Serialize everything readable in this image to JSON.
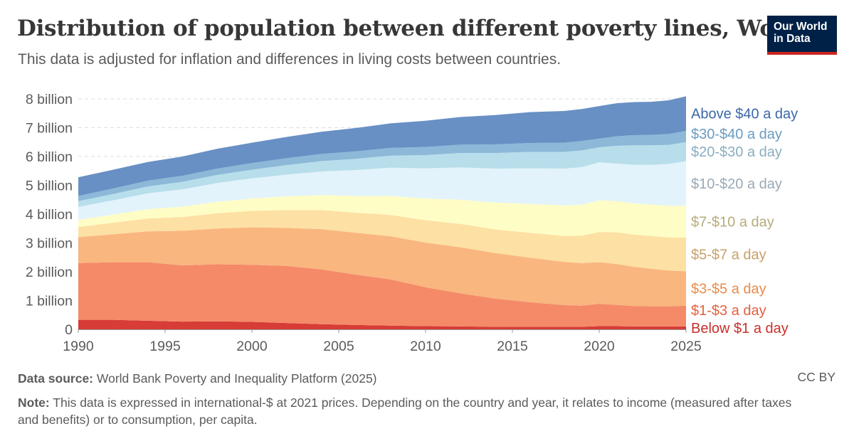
{
  "header": {
    "title": "Distribution of population between different poverty lines, World",
    "subtitle": "This data is adjusted for inflation and differences in living costs between countries.",
    "logo_line1": "Our World",
    "logo_line2": "in Data"
  },
  "footer": {
    "source_label": "Data source:",
    "source_text": "World Bank Poverty and Inequality Platform (2025)",
    "license": "CC BY",
    "note_label": "Note:",
    "note_text": "This data is expressed in international-$ at 2021 prices. Depending on the country and year, it relates to income (measured after taxes and benefits) or to consumption, per capita."
  },
  "chart_data": {
    "type": "area",
    "stacked": true,
    "title": "Distribution of population between different poverty lines, World",
    "xlim": [
      1990,
      2025
    ],
    "ylim": [
      0,
      8000000000
    ],
    "x_ticks": [
      1990,
      1995,
      2000,
      2005,
      2010,
      2015,
      2020,
      2025
    ],
    "x_tick_labels": [
      "1990",
      "1995",
      "2000",
      "2005",
      "2010",
      "2015",
      "2020",
      "2025"
    ],
    "y_ticks": [
      0,
      1000000000,
      2000000000,
      3000000000,
      4000000000,
      5000000000,
      6000000000,
      7000000000,
      8000000000
    ],
    "y_tick_labels": [
      "0",
      "1 billion",
      "2 billion",
      "3 billion",
      "4 billion",
      "5 billion",
      "6 billion",
      "7 billion",
      "8 billion"
    ],
    "grid": "horizontal dashed",
    "legend": "right, inline labels",
    "x": [
      1990,
      1992,
      1994,
      1996,
      1998,
      2000,
      2002,
      2004,
      2006,
      2008,
      2010,
      2012,
      2014,
      2016,
      2018,
      2019,
      2020,
      2021,
      2022,
      2023,
      2024,
      2025
    ],
    "series": [
      {
        "name": "Below $1 a day",
        "color": "#d73c36",
        "values": [
          0.33,
          0.33,
          0.3,
          0.27,
          0.28,
          0.26,
          0.22,
          0.18,
          0.15,
          0.13,
          0.11,
          0.1,
          0.09,
          0.09,
          0.09,
          0.09,
          0.11,
          0.11,
          0.1,
          0.1,
          0.1,
          0.1
        ]
      },
      {
        "name": "$1-$3 a day",
        "color": "#f48a68",
        "values": [
          1.97,
          2.0,
          2.03,
          1.95,
          1.98,
          1.98,
          1.98,
          1.9,
          1.75,
          1.6,
          1.35,
          1.15,
          0.98,
          0.85,
          0.75,
          0.73,
          0.78,
          0.74,
          0.71,
          0.7,
          0.7,
          0.72
        ]
      },
      {
        "name": "$3-$5 a day",
        "color": "#f9b67f",
        "values": [
          0.9,
          0.97,
          1.07,
          1.2,
          1.24,
          1.3,
          1.32,
          1.4,
          1.45,
          1.5,
          1.55,
          1.6,
          1.58,
          1.55,
          1.5,
          1.48,
          1.44,
          1.42,
          1.36,
          1.3,
          1.24,
          1.2
        ]
      },
      {
        "name": "$5-$7 a day",
        "color": "#fde0a3",
        "values": [
          0.35,
          0.4,
          0.45,
          0.48,
          0.53,
          0.57,
          0.62,
          0.66,
          0.7,
          0.74,
          0.78,
          0.81,
          0.82,
          0.86,
          0.9,
          0.95,
          1.05,
          1.1,
          1.12,
          1.14,
          1.15,
          1.17
        ]
      },
      {
        "name": "$7-$10 a day",
        "color": "#fefdc6",
        "values": [
          0.25,
          0.28,
          0.32,
          0.36,
          0.4,
          0.43,
          0.48,
          0.52,
          0.58,
          0.66,
          0.75,
          0.84,
          0.93,
          1.0,
          1.06,
          1.08,
          1.1,
          1.08,
          1.08,
          1.09,
          1.1,
          1.1
        ]
      },
      {
        "name": "$10-$20 a day",
        "color": "#e3f3fb",
        "values": [
          0.45,
          0.5,
          0.55,
          0.6,
          0.65,
          0.7,
          0.75,
          0.82,
          0.9,
          0.98,
          1.05,
          1.12,
          1.18,
          1.24,
          1.28,
          1.3,
          1.32,
          1.3,
          1.34,
          1.38,
          1.45,
          1.55
        ]
      },
      {
        "name": "$20-$30 a day",
        "color": "#b7deea",
        "values": [
          0.2,
          0.22,
          0.24,
          0.26,
          0.28,
          0.3,
          0.33,
          0.36,
          0.39,
          0.42,
          0.46,
          0.5,
          0.54,
          0.57,
          0.58,
          0.58,
          0.52,
          0.62,
          0.68,
          0.68,
          0.66,
          0.66
        ]
      },
      {
        "name": "$30-$40 a day",
        "color": "#8db8d8",
        "values": [
          0.18,
          0.19,
          0.2,
          0.21,
          0.22,
          0.23,
          0.24,
          0.25,
          0.26,
          0.27,
          0.28,
          0.29,
          0.3,
          0.31,
          0.32,
          0.33,
          0.3,
          0.33,
          0.35,
          0.36,
          0.38,
          0.39
        ]
      },
      {
        "name": "Above $40 a day",
        "color": "#6990c4",
        "values": [
          0.65,
          0.65,
          0.65,
          0.67,
          0.69,
          0.71,
          0.74,
          0.77,
          0.81,
          0.85,
          0.91,
          0.96,
          1.02,
          1.07,
          1.1,
          1.11,
          1.13,
          1.15,
          1.15,
          1.15,
          1.17,
          1.2
        ]
      }
    ],
    "units_note": "values in billions of people"
  },
  "labels": {
    "Below $1 a day": "#c7302b",
    "$1-$3 a day": "#e4603f",
    "$3-$5 a day": "#e88c4d",
    "$5-$7 a day": "#c9a06a",
    "$7-$10 a day": "#b6ac7e",
    "$10-$20 a day": "#9aa9b6",
    "$20-$30 a day": "#8aaec0",
    "$30-$40 a day": "#6b9cc0",
    "Above $40 a day": "#3b68a8"
  }
}
